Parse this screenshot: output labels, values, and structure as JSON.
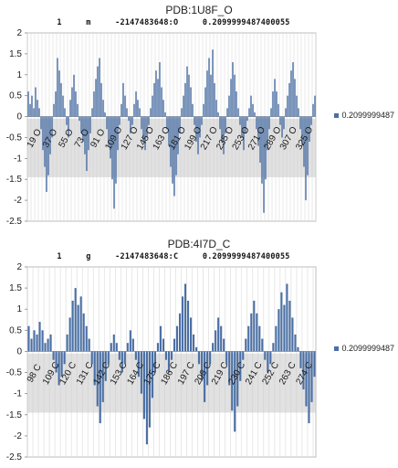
{
  "charts": [
    {
      "title": "PDB:1U8F_O",
      "subtitle": "1     m     -2147483648:O     0.2099999487400055",
      "legend": "0.2099999487",
      "color": "#4a6fa5",
      "grid": "vertical-gray",
      "ylim": [
        -2.5,
        2
      ],
      "yticks": [
        "2",
        "1.5",
        "1",
        "0.5",
        "0",
        "-0.5",
        "-1",
        "-1.5",
        "-2",
        "-2.5"
      ],
      "xticks": [
        "19 O",
        "37 O",
        "55 O",
        "73 O",
        "91 O",
        "109 O",
        "127 O",
        "145 O",
        "163 O",
        "181 O",
        "199 O",
        "217 O",
        "235 O",
        "253 O",
        "271 O",
        "289 O",
        "307 O",
        "325 O"
      ]
    },
    {
      "title": "PDB:4I7D_C",
      "subtitle": "1     g     -2147483648:C     0.2099999487400055",
      "legend": "0.2099999487",
      "color": "#4a6fa5",
      "grid": "vertical-gray",
      "ylim": [
        -2.5,
        2
      ],
      "yticks": [
        "2",
        "1.5",
        "1",
        "0.5",
        "0",
        "-0.5",
        "-1",
        "-1.5",
        "-2",
        "-2.5"
      ],
      "xticks": [
        "98 C",
        "109 C",
        "120 C",
        "131 C",
        "142 C",
        "153 C",
        "164 C",
        "175 C",
        "186 C",
        "197 C",
        "208 C",
        "219 C",
        "230 C",
        "241 C",
        "252 C",
        "263 C",
        "274 C"
      ]
    }
  ],
  "chart_data": [
    {
      "type": "bar",
      "title": "PDB:1U8F_O",
      "series": [
        {
          "name": "0.2099999487",
          "values": [
            0.6,
            0.3,
            0.5,
            0.2,
            0.7,
            0.4,
            0.2,
            -0.3,
            -0.8,
            -1.2,
            -1.8,
            -1.4,
            -0.9,
            -0.5,
            0.3,
            0.6,
            1.4,
            1.1,
            0.8,
            0.5,
            0.2,
            -0.2,
            -0.5,
            0.4,
            0.7,
            1.0,
            0.6,
            0.3,
            -0.1,
            -0.4,
            -0.6,
            -0.9,
            -1.3,
            -0.8,
            -0.4,
            0.2,
            0.6,
            0.9,
            1.2,
            1.4,
            0.8,
            0.4,
            0.1,
            -0.3,
            -0.7,
            -1.0,
            -1.5,
            -2.2,
            -1.6,
            -0.8,
            -0.2,
            0.3,
            0.8,
            0.5,
            0.2,
            -0.1,
            -0.4,
            -0.2,
            0.3,
            0.6,
            0.4,
            0.2,
            -0.3,
            -0.6,
            -0.8,
            -0.5,
            -0.2,
            0.2,
            0.5,
            0.8,
            1.1,
            0.9,
            1.3,
            0.7,
            0.4,
            0.1,
            -0.3,
            -0.7,
            -1.2,
            -1.6,
            -1.9,
            -1.4,
            -0.9,
            -0.4,
            0.2,
            0.5,
            0.8,
            1.2,
            1.0,
            0.7,
            0.3,
            -0.2,
            -0.6,
            -0.9,
            -0.5,
            -0.2,
            0.3,
            0.7,
            1.1,
            1.4,
            1.0,
            1.6,
            0.8,
            0.4,
            0.1,
            -0.3,
            -0.6,
            -0.9,
            -0.4,
            0.2,
            0.5,
            0.9,
            1.3,
            1.0,
            0.6,
            0.2,
            -0.2,
            -0.5,
            -0.8,
            -0.4,
            -0.1,
            0.2,
            0.5,
            0.3,
            0.1,
            -0.3,
            -0.7,
            -1.1,
            -1.6,
            -2.3,
            -1.5,
            -0.8,
            -0.3,
            0.2,
            0.6,
            0.9,
            0.6,
            0.3,
            -0.2,
            -0.5,
            -0.3,
            0.2,
            0.5,
            0.8,
            1.1,
            1.3,
            0.9,
            0.5,
            0.2,
            -0.3,
            -0.7,
            -1.2,
            -2.0,
            -1.4,
            -0.6,
            -0.2,
            0.3,
            0.5
          ]
        }
      ],
      "xlim_labels": [
        "19 O",
        "325 O"
      ],
      "ylim": [
        -2.5,
        2
      ],
      "grid": true,
      "legend_position": "right"
    },
    {
      "type": "bar",
      "title": "PDB:4I7D_C",
      "series": [
        {
          "name": "0.2099999487",
          "values": [
            0.6,
            0.3,
            0.5,
            0.4,
            0.7,
            0.5,
            0.2,
            0.3,
            0.4,
            -0.2,
            -0.5,
            -0.8,
            -0.6,
            -0.3,
            0.4,
            0.8,
            1.2,
            1.5,
            1.1,
            1.3,
            0.9,
            0.6,
            0.3,
            -0.3,
            -0.8,
            -1.3,
            -1.7,
            -1.2,
            -0.7,
            -0.3,
            0.2,
            0.4,
            0.2,
            -0.2,
            -0.5,
            -0.3,
            0.2,
            0.5,
            0.3,
            -0.2,
            -0.6,
            -1.0,
            -1.6,
            -2.2,
            -1.8,
            -1.1,
            -0.5,
            0.2,
            0.6,
            0.3,
            -0.2,
            -0.5,
            -0.2,
            0.3,
            0.6,
            0.9,
            1.3,
            1.6,
            1.2,
            0.8,
            0.4,
            0.1,
            -0.3,
            -0.7,
            -1.2,
            -0.8,
            -0.3,
            0.2,
            0.5,
            0.8,
            0.6,
            0.3,
            -0.3,
            -0.8,
            -1.4,
            -1.9,
            -1.3,
            -0.7,
            -0.2,
            0.3,
            0.6,
            0.9,
            1.2,
            0.9,
            0.6,
            0.3,
            -0.2,
            -0.5,
            -0.3,
            0.2,
            0.6,
            1.0,
            1.4,
            1.1,
            1.6,
            1.2,
            0.8,
            0.4,
            0.1,
            -0.4,
            -0.9,
            -1.3,
            -1.7,
            -1.2,
            -0.6
          ]
        }
      ],
      "xlim_labels": [
        "98 C",
        "274 C"
      ],
      "ylim": [
        -2.5,
        2
      ],
      "grid": true,
      "legend_position": "right"
    }
  ]
}
